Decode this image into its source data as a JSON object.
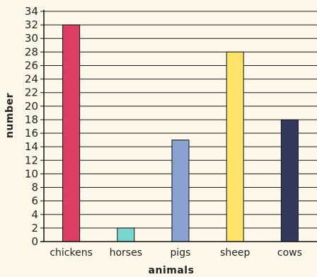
{
  "chart_data": {
    "type": "bar",
    "title": "",
    "xlabel": "animals",
    "ylabel": "number",
    "categories": [
      "chickens",
      "horses",
      "pigs",
      "sheep",
      "cows"
    ],
    "values": [
      32,
      2,
      15,
      28,
      18
    ],
    "colors": [
      "#dc3f63",
      "#79d6cf",
      "#8aa2cf",
      "#fbe468",
      "#33395c"
    ],
    "ylim": [
      0,
      34
    ],
    "yticks": [
      0,
      2,
      4,
      6,
      8,
      10,
      12,
      14,
      16,
      18,
      20,
      22,
      24,
      26,
      28,
      30,
      32,
      34
    ],
    "grid": true,
    "legend": "none"
  }
}
